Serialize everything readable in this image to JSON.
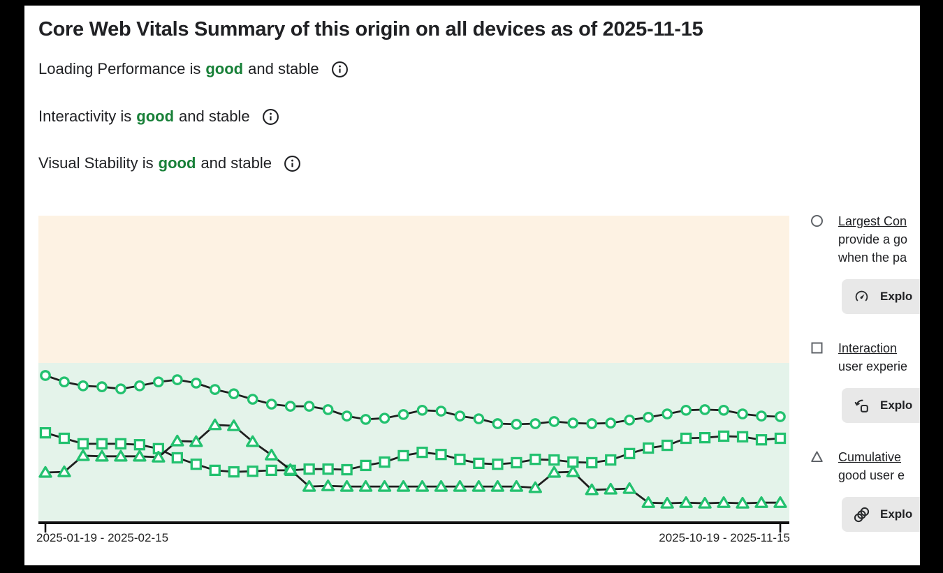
{
  "header": {
    "title": "Core Web Vitals Summary of this origin on all devices as of 2025-11-15"
  },
  "statuses": [
    {
      "prefix": "Loading Performance is",
      "rating": "good",
      "suffix": "and stable"
    },
    {
      "prefix": "Interactivity is",
      "rating": "good",
      "suffix": "and stable"
    },
    {
      "prefix": "Visual Stability is",
      "rating": "good",
      "suffix": "and stable"
    }
  ],
  "colors": {
    "text": "#202124",
    "rating_good": "#188038",
    "marker_green": "#23C16F",
    "series_line": "#1F1F1F",
    "zone_warn_bg": "#FDF2E3",
    "zone_good_bg": "#E4F3EA",
    "button_bg": "#E8E8E8",
    "legend_marker": "#5F6368",
    "axis": "#111111"
  },
  "chart_data": {
    "type": "line",
    "title": "",
    "xlabel": "",
    "ylabel": "",
    "ylim": [
      0,
      100
    ],
    "grid": false,
    "legend_position": "right",
    "x_axis": {
      "num_points": 40,
      "tick_labels": [
        "2025-01-19 - 2025-02-15",
        "2025-10-19 - 2025-11-15"
      ]
    },
    "zones": [
      {
        "from": 0,
        "to": 51.7,
        "color": "#E4F3EA"
      },
      {
        "from": 51.7,
        "to": 100,
        "color": "#FDF2E3"
      }
    ],
    "series": [
      {
        "name": "Largest Con",
        "marker": "circle",
        "values": [
          47.6,
          45.5,
          44.2,
          43.9,
          43.2,
          44.2,
          45.5,
          46.2,
          45.1,
          43.0,
          41.6,
          39.8,
          38.2,
          37.5,
          37.5,
          36.4,
          34.3,
          33.2,
          33.6,
          34.8,
          36.2,
          35.9,
          34.3,
          33.4,
          31.8,
          31.6,
          31.8,
          32.5,
          32.0,
          31.8,
          32.0,
          33.0,
          33.9,
          35.0,
          36.2,
          36.4,
          36.2,
          35.0,
          34.3,
          34.1
        ]
      },
      {
        "name": "Interaction",
        "marker": "square",
        "values": [
          28.8,
          27.0,
          25.2,
          25.2,
          25.2,
          24.9,
          23.6,
          20.6,
          18.5,
          16.5,
          16.0,
          16.2,
          16.5,
          16.5,
          16.9,
          16.9,
          16.7,
          18.1,
          19.2,
          21.3,
          22.4,
          21.7,
          20.1,
          18.8,
          18.5,
          19.0,
          20.1,
          19.9,
          19.2,
          19.0,
          19.9,
          22.0,
          23.8,
          24.7,
          27.0,
          27.2,
          27.7,
          27.5,
          26.5,
          27.0
        ]
      },
      {
        "name": "Cumulative",
        "marker": "triangle",
        "values": [
          15.8,
          16.0,
          21.3,
          21.1,
          21.1,
          21.1,
          20.8,
          26.1,
          25.9,
          31.4,
          31.1,
          25.9,
          21.5,
          16.7,
          11.2,
          11.4,
          11.2,
          11.2,
          11.2,
          11.2,
          11.2,
          11.2,
          11.2,
          11.2,
          11.2,
          11.2,
          10.8,
          15.8,
          16.0,
          10.1,
          10.3,
          10.5,
          5.9,
          5.7,
          5.9,
          5.7,
          5.9,
          5.7,
          5.9,
          5.9
        ]
      }
    ]
  },
  "legend": {
    "items": [
      {
        "link": "Largest Con",
        "desc_lines": [
          "provide a go",
          "when the pa"
        ],
        "button_label": "Explo"
      },
      {
        "link": "Interaction",
        "desc_lines": [
          "user experie"
        ],
        "button_label": "Explo"
      },
      {
        "link": "Cumulative",
        "desc_lines": [
          "good user e"
        ],
        "button_label": "Explo"
      }
    ]
  }
}
